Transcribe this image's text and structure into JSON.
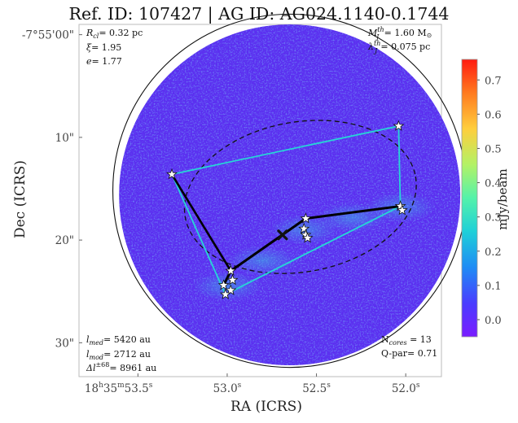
{
  "chart_data": {
    "type": "scatter",
    "title": "Ref. ID: 107427 | AG ID: AG024.1140-0.1744",
    "xlabel": "RA (ICRS)",
    "ylabel": "Dec (ICRS)",
    "x_ticks": {
      "values": [
        53.5,
        53.0,
        52.5,
        52.0
      ],
      "labels": [
        {
          "main": "18",
          "sup1": "h",
          "mid": "35",
          "sup2": "m",
          "end": "53.5",
          "sup3": "s"
        },
        {
          "main": "53.0",
          "sup": "s"
        },
        {
          "main": "52.5",
          "sup": "s"
        },
        {
          "main": "52.0",
          "sup": "s"
        }
      ]
    },
    "y_ticks": {
      "values": [
        0,
        10,
        20,
        30
      ],
      "labels": [
        "-7°55'00\"",
        "10\"",
        "20\"",
        "30\""
      ]
    },
    "xlim": [
      53.83,
      51.8
    ],
    "ylim": [
      33.3,
      -1.0
    ],
    "colorbar": {
      "label": "mJy/beam",
      "ticks": [
        0.0,
        0.1,
        0.2,
        0.3,
        0.4,
        0.5,
        0.6,
        0.7
      ],
      "range": [
        -0.05,
        0.76
      ],
      "colormap": "rainbow"
    },
    "annotations_top_left": {
      "rcl_label": "R",
      "rcl_sub": "cl",
      "rcl_value": "= 0.32 pc",
      "xi_label": "ξ",
      "xi_value": "= 1.95",
      "e_label": "e",
      "e_value": "= 1.77"
    },
    "annotations_top_right": {
      "m_label": "M",
      "m_sup": "th",
      "m_sub": "J",
      "m_value": "= 1.60 M",
      "m_unit_symbol": "⊙",
      "lambda_label": "λ",
      "lambda_sup": "th",
      "lambda_sub": "J",
      "lambda_value": "= 0.075 pc"
    },
    "annotations_bottom_left": {
      "lmed_label": "l",
      "lmed_sub": "med",
      "lmed_value": "= 5420 au",
      "lmod_label": "l",
      "lmod_sub": "mod",
      "lmod_value": "= 2712 au",
      "dl_label": "Δl",
      "dl_sup": "±68",
      "dl_value": "= 8961 au"
    },
    "annotations_bottom_right": {
      "ncores_label": "N",
      "ncores_sub": "cores",
      "ncores_value": " = 13",
      "qpar_text": "Q-par= 0.71"
    },
    "cores": [
      {
        "ra": 53.02,
        "dec": 24.4
      },
      {
        "ra": 52.98,
        "dec": 24.9
      },
      {
        "ra": 52.97,
        "dec": 23.9
      },
      {
        "ra": 53.01,
        "dec": 25.3
      },
      {
        "ra": 52.98,
        "dec": 23.0
      },
      {
        "ra": 53.31,
        "dec": 13.6
      },
      {
        "ra": 52.56,
        "dec": 17.9
      },
      {
        "ra": 52.57,
        "dec": 18.9
      },
      {
        "ra": 52.56,
        "dec": 19.5
      },
      {
        "ra": 52.55,
        "dec": 19.8
      },
      {
        "ra": 52.04,
        "dec": 8.9
      },
      {
        "ra": 52.03,
        "dec": 16.7
      },
      {
        "ra": 52.02,
        "dec": 17.1
      }
    ],
    "mst_thick_edges": [
      [
        0,
        4
      ],
      [
        4,
        6
      ],
      [
        6,
        11
      ]
    ],
    "mst_cyan_path": [
      [
        53.31,
        13.6
      ],
      [
        52.04,
        8.9
      ],
      [
        52.03,
        16.7
      ],
      [
        53.01,
        25.3
      ],
      [
        53.31,
        13.6
      ]
    ],
    "mst_cyan_inner": [
      [
        53.31,
        13.6
      ],
      [
        52.98,
        23.0
      ]
    ],
    "centroid": {
      "ra": 52.69,
      "dec": 19.5
    },
    "ellipse": {
      "cx_ra": 52.59,
      "cy_dec": 15.8,
      "semi_major_ra": 0.655,
      "semi_minor_dec": 7.3,
      "angle_deg": -10
    },
    "field_circle": {
      "cx_ra": 52.65,
      "cy_dec": 15.6,
      "radius_dec": 16.6
    },
    "outer_circle": {
      "cx_ra": 52.65,
      "cy_dec": 15.2,
      "radius_dec": 17.2
    },
    "colors": {
      "map_base": "#5b2ff0",
      "contour": "#111111",
      "mst_thick": "#000000",
      "mst_thin": "#26d6d6",
      "frame": "#bbbbbb"
    }
  }
}
